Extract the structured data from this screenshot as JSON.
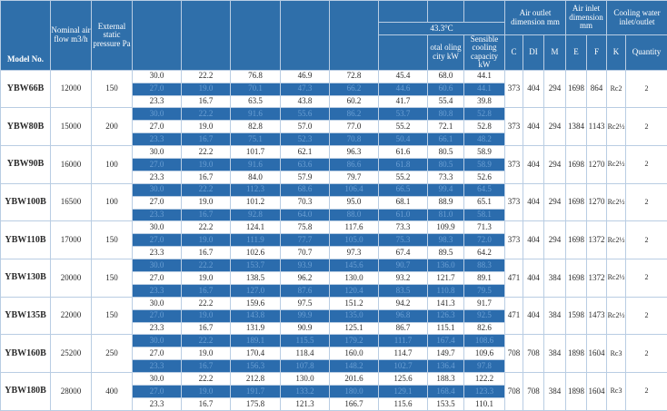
{
  "header": {
    "model": "Model No.",
    "flow": "Nominal air flow m3/h",
    "pressure": "External static pressure Pa",
    "temp": "43.3°C",
    "total": "otal oling city kW",
    "sensible": "Sensible cooling capacity kW",
    "outlet": "Air outlet dimension mm",
    "c": "C",
    "di": "DI",
    "m": "M",
    "inlet": "Air inlet dimension mm",
    "e": "E",
    "f": "F",
    "water": "Cooling water inlet/outlet",
    "k": "K",
    "quantity": "Quantity"
  },
  "models": [
    {
      "name": "YBW66B",
      "flow": "12000",
      "pressure": "150",
      "c": "373",
      "di": "404",
      "m": "294",
      "e": "1698",
      "f": "864",
      "k": "Rc2",
      "qty": "2",
      "cond": [
        [
          "30.0",
          "22.2",
          "76.8",
          "46.9",
          "72.8",
          "45.4",
          "68.0",
          "44.1"
        ],
        [
          "27.0",
          "19.0",
          "70.1",
          "47.3",
          "66.2",
          "44.6",
          "60.6",
          "44.1"
        ],
        [
          "23.3",
          "16.7",
          "63.5",
          "43.8",
          "60.2",
          "41.7",
          "55.4",
          "39.8"
        ]
      ]
    },
    {
      "name": "YBW80B",
      "flow": "15000",
      "pressure": "200",
      "c": "373",
      "di": "404",
      "m": "294",
      "e": "1384",
      "f": "1143",
      "k": "Rc2½",
      "qty": "2",
      "cond": [
        [
          "30.0",
          "22.2",
          "91.6",
          "55.6",
          "86.2",
          "53.7",
          "80.8",
          "52.8"
        ],
        [
          "27.0",
          "19.0",
          "82.8",
          "57.0",
          "77.0",
          "55.2",
          "72.1",
          "52.8"
        ],
        [
          "23.3",
          "16.7",
          "75.1",
          "52.3",
          "70.8",
          "50.4",
          "66.1",
          "48.2"
        ]
      ]
    },
    {
      "name": "YBW90B",
      "flow": "16000",
      "pressure": "100",
      "c": "373",
      "di": "404",
      "m": "294",
      "e": "1698",
      "f": "1270",
      "k": "Rc2½",
      "qty": "2",
      "cond": [
        [
          "30.0",
          "22.2",
          "101.7",
          "62.1",
          "96.3",
          "61.6",
          "80.5",
          "58.9"
        ],
        [
          "27.0",
          "19.0",
          "91.6",
          "63.6",
          "86.6",
          "61.8",
          "80.5",
          "58.9"
        ],
        [
          "23.3",
          "16.7",
          "84.0",
          "57.9",
          "79.7",
          "55.2",
          "73.3",
          "52.6"
        ]
      ]
    },
    {
      "name": "YBW100B",
      "flow": "16500",
      "pressure": "100",
      "c": "373",
      "di": "404",
      "m": "294",
      "e": "1698",
      "f": "1270",
      "k": "Rc2½",
      "qty": "2",
      "cond": [
        [
          "30.0",
          "22.2",
          "112.3",
          "68.6",
          "106.4",
          "66.5",
          "99.4",
          "64.5"
        ],
        [
          "27.0",
          "19.0",
          "101.2",
          "70.3",
          "95.0",
          "68.1",
          "88.9",
          "65.1"
        ],
        [
          "23.3",
          "16.7",
          "92.8",
          "64.0",
          "88.0",
          "61.0",
          "81.0",
          "58.1"
        ]
      ]
    },
    {
      "name": "YBW110B",
      "flow": "17000",
      "pressure": "150",
      "c": "373",
      "di": "404",
      "m": "294",
      "e": "1698",
      "f": "1372",
      "k": "Rc2½",
      "qty": "2",
      "cond": [
        [
          "30.0",
          "22.2",
          "124.1",
          "75.8",
          "117.6",
          "73.3",
          "109.9",
          "71.3"
        ],
        [
          "27.0",
          "19.0",
          "111.9",
          "77.7",
          "105.0",
          "75.3",
          "98.3",
          "72.0"
        ],
        [
          "23.3",
          "16.7",
          "102.6",
          "70.7",
          "97.3",
          "67.4",
          "89.5",
          "64.2"
        ]
      ]
    },
    {
      "name": "YBW130B",
      "flow": "20000",
      "pressure": "150",
      "c": "471",
      "di": "404",
      "m": "384",
      "e": "1698",
      "f": "1372",
      "k": "Rc2½",
      "qty": "2",
      "cond": [
        [
          "30.0",
          "22.2",
          "153.7",
          "93.9",
          "145.6",
          "90.7",
          "136.0",
          "88.3"
        ],
        [
          "27.0",
          "19.0",
          "138.5",
          "96.2",
          "130.0",
          "93.2",
          "121.7",
          "89.1"
        ],
        [
          "23.3",
          "16.7",
          "127.0",
          "87.6",
          "120.4",
          "83.5",
          "110.8",
          "79.5"
        ]
      ]
    },
    {
      "name": "YBW135B",
      "flow": "22000",
      "pressure": "150",
      "c": "471",
      "di": "404",
      "m": "384",
      "e": "1598",
      "f": "1473",
      "k": "Rc2½",
      "qty": "2",
      "cond": [
        [
          "30.0",
          "22.2",
          "159.6",
          "97.5",
          "151.2",
          "94.2",
          "141.3",
          "91.7"
        ],
        [
          "27.0",
          "19.0",
          "143.8",
          "99.9",
          "135.0",
          "96.8",
          "126.3",
          "92.5"
        ],
        [
          "23.3",
          "16.7",
          "131.9",
          "90.9",
          "125.1",
          "86.7",
          "115.1",
          "82.6"
        ]
      ]
    },
    {
      "name": "YBW160B",
      "flow": "25200",
      "pressure": "250",
      "c": "708",
      "di": "708",
      "m": "384",
      "e": "1898",
      "f": "1604",
      "k": "Rc3",
      "qty": "2",
      "cond": [
        [
          "30.0",
          "22.2",
          "189.1",
          "115.5",
          "179.2",
          "111.7",
          "167.4",
          "108.6"
        ],
        [
          "27.0",
          "19.0",
          "170.4",
          "118.4",
          "160.0",
          "114.7",
          "149.7",
          "109.6"
        ],
        [
          "23.3",
          "16.7",
          "156.3",
          "107.8",
          "148.2",
          "102.7",
          "136.4",
          "97.8"
        ]
      ]
    },
    {
      "name": "YBW180B",
      "flow": "28000",
      "pressure": "400",
      "c": "708",
      "di": "708",
      "m": "384",
      "e": "1898",
      "f": "1604",
      "k": "Rc3",
      "qty": "2",
      "cond": [
        [
          "30.0",
          "22.2",
          "212.8",
          "130.0",
          "201.6",
          "125.6",
          "188.3",
          "122.2"
        ],
        [
          "27.0",
          "19.0",
          "191.7",
          "133.2",
          "180.0",
          "129.1",
          "168.4",
          "123.3"
        ],
        [
          "23.3",
          "16.7",
          "175.8",
          "121.3",
          "166.7",
          "115.6",
          "153.5",
          "110.1"
        ]
      ]
    }
  ]
}
